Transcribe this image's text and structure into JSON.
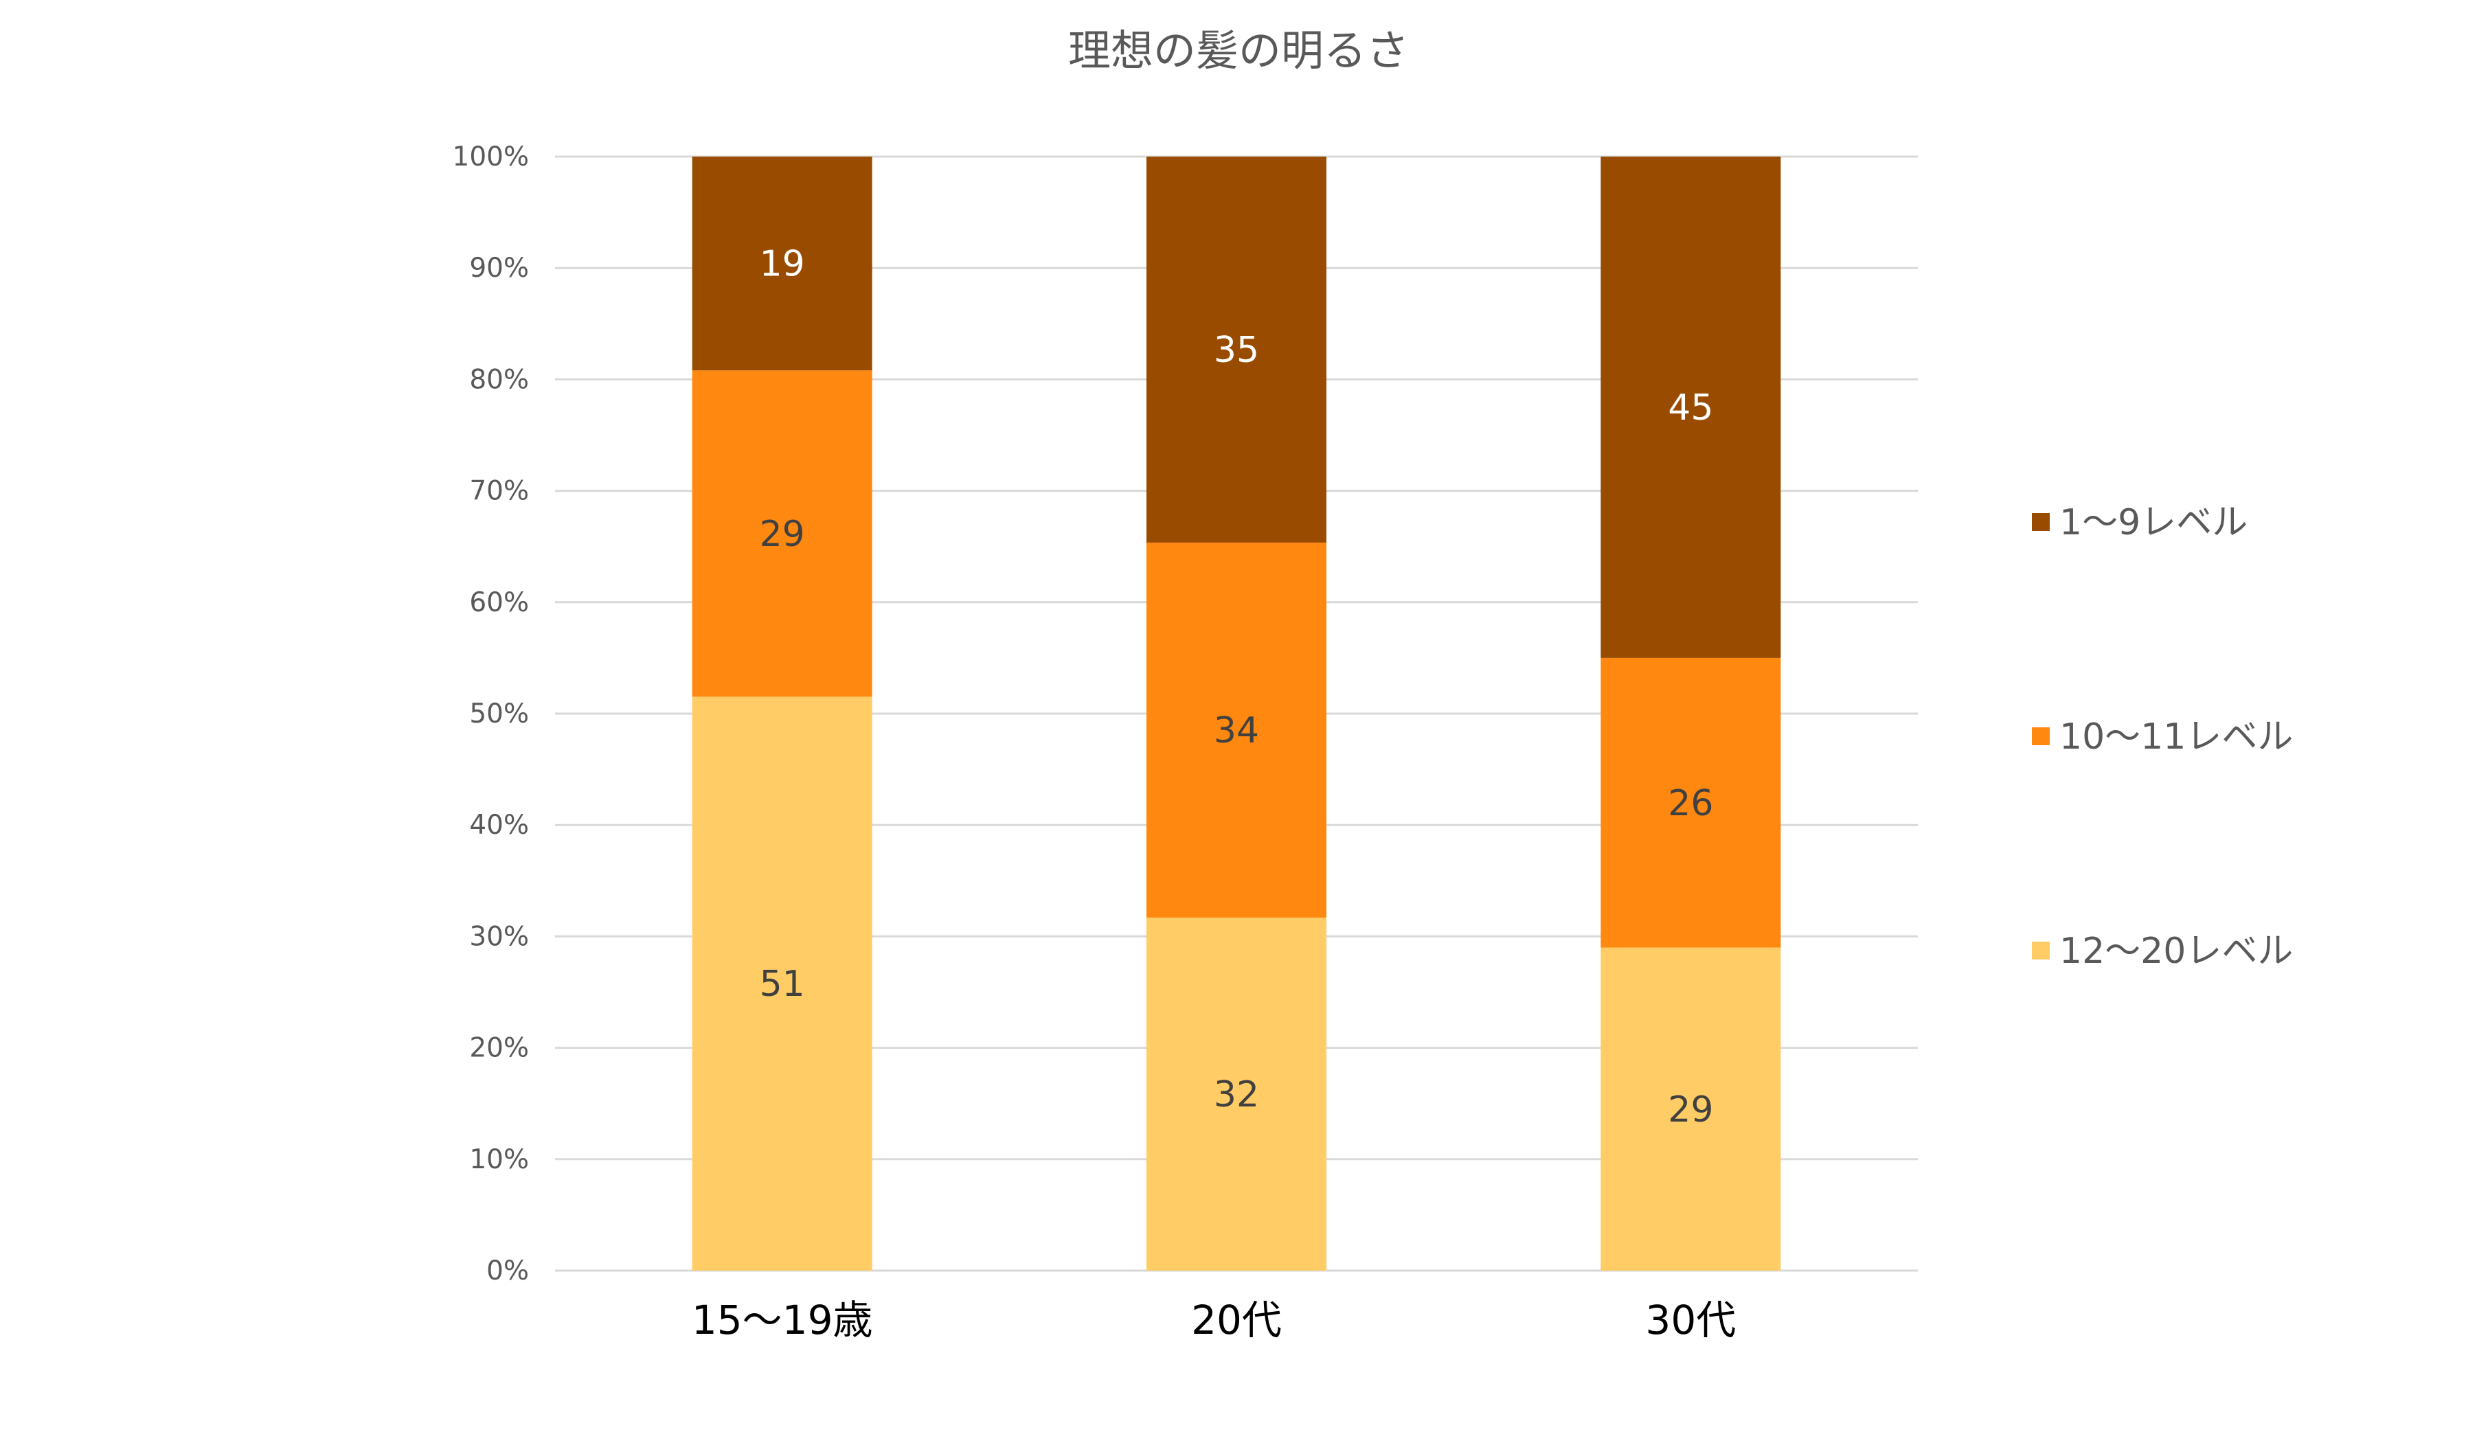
{
  "chart_data": {
    "type": "bar",
    "stacked": true,
    "percent_stacked": true,
    "title": "理想の髪の明るさ",
    "categories": [
      "15～19歳",
      "20代",
      "30代"
    ],
    "series": [
      {
        "name": "12～20レベル",
        "values": [
          51,
          32,
          29
        ],
        "color": "#FFCC66"
      },
      {
        "name": "10～11レベル",
        "values": [
          29,
          34,
          26
        ],
        "color": "#FF8811"
      },
      {
        "name": "1～9レベル",
        "values": [
          19,
          35,
          45
        ],
        "color": "#994C00"
      }
    ],
    "ylim": [
      0,
      100
    ],
    "y_ticks": [
      "0%",
      "10%",
      "20%",
      "30%",
      "40%",
      "50%",
      "60%",
      "70%",
      "80%",
      "90%",
      "100%"
    ],
    "grid": true,
    "legend_position": "right",
    "legend_order": [
      "1～9レベル",
      "10～11レベル",
      "12～20レベル"
    ],
    "colors": {
      "grid": "#D9D9D9",
      "title": "#595959",
      "tick_label": "#595959",
      "category_label": "#000000",
      "data_label_dark": "#404040",
      "data_label_light": "#FFFFFF"
    }
  }
}
